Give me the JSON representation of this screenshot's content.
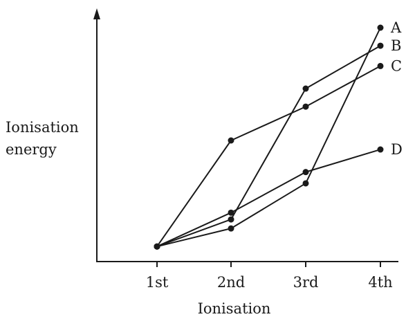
{
  "chart_data": {
    "type": "line",
    "title": "",
    "xlabel": "Ionisation",
    "ylabel_lines": [
      "Ionisation",
      "energy"
    ],
    "categories": [
      "1st",
      "2nd",
      "3rd",
      "4th"
    ],
    "ylim": [
      0,
      100
    ],
    "grid": false,
    "legend": "end-of-line labels",
    "colors": {
      "line": "#1a1a1a",
      "axis": "#1a1a1a"
    },
    "series": [
      {
        "name": "A",
        "values": [
          3,
          11,
          31,
          100
        ]
      },
      {
        "name": "B",
        "values": [
          3,
          15,
          73,
          92
        ]
      },
      {
        "name": "C",
        "values": [
          3,
          50,
          65,
          83
        ]
      },
      {
        "name": "D",
        "values": [
          3,
          18,
          36,
          46
        ]
      }
    ]
  }
}
